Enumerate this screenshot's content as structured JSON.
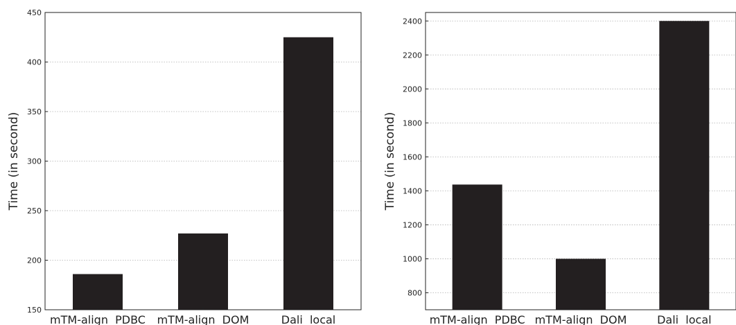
{
  "colors": {
    "bar": "#231f20",
    "grid": "#b0b0b0",
    "axis": "#222222"
  },
  "chart_data": [
    {
      "type": "bar",
      "title": "",
      "xlabel": "",
      "ylabel": "Time (in second)",
      "categories": [
        "mTM-align  PDBC",
        "mTM-align  DOM",
        "Dali  local"
      ],
      "values": [
        186,
        227,
        425
      ],
      "ylim": [
        150,
        450
      ],
      "yticks": [
        "150",
        "200",
        "250",
        "300",
        "350",
        "400",
        "450"
      ],
      "grid": true
    },
    {
      "type": "bar",
      "title": "",
      "xlabel": "",
      "ylabel": "Time (in second)",
      "categories": [
        "mTM-align  PDBC",
        "mTM-align  DOM",
        "Dali  local"
      ],
      "values": [
        1437,
        1000,
        2400
      ],
      "ylim": [
        700,
        2450
      ],
      "yticks": [
        "800",
        "1000",
        "1200",
        "1400",
        "1600",
        "1800",
        "2000",
        "2200",
        "2400"
      ],
      "grid": true
    }
  ]
}
